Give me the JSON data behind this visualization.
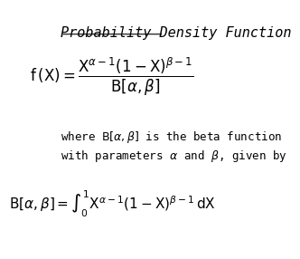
{
  "title": "Probability Density Function",
  "formula1": "f\\,(X) = \\dfrac{X^{\\alpha-1}(1-X)^{\\beta-1}}{B[\\alpha,\\beta]}",
  "text_line1": "where $B[\\alpha,\\beta]$ is the beta function",
  "text_line2": "with parameters $\\alpha$ and $\\beta$, given by",
  "formula2": "B[\\alpha,\\beta] = \\int_{0}^{1} X^{\\alpha-1}(1-X)^{\\beta-1}\\,dX",
  "bg_color": "#ffffff",
  "text_color": "#000000",
  "font_size_title": 11,
  "font_size_body": 9,
  "font_size_formula": 11
}
